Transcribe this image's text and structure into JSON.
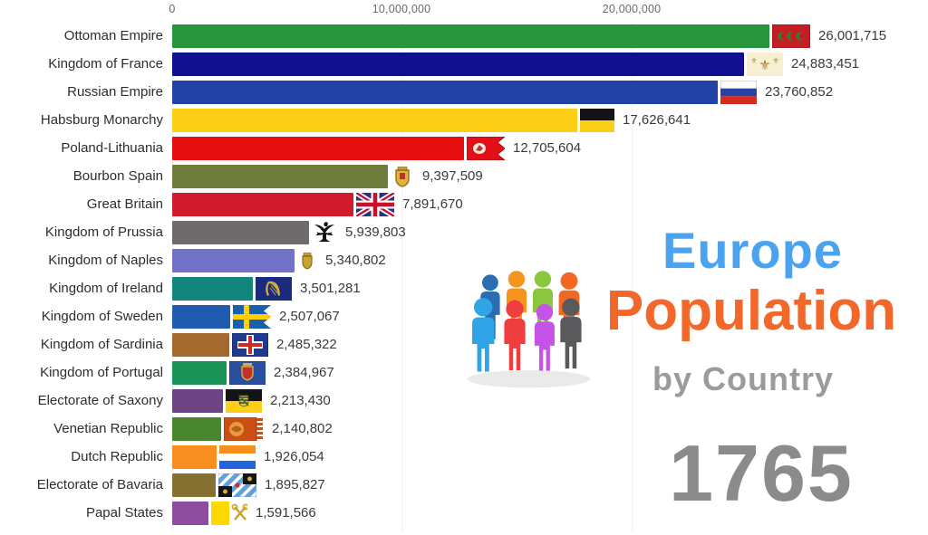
{
  "title": {
    "line1": "Europe",
    "line2": "Population",
    "line3": "by Country",
    "line1_color": "#4aa3ee",
    "line2_color": "#f2682a",
    "line3_color": "#9b9b9b"
  },
  "year": {
    "value": "1765",
    "color": "#8b8b8d"
  },
  "people_icon": {
    "back_row_colors": [
      "#2a6db3",
      "#f7941d",
      "#8cc63e",
      "#f26822"
    ],
    "front_row_colors": [
      "#30a4e6",
      "#ee3e3e",
      "#c553e8",
      "#5a5a5c"
    ]
  },
  "chart_data": {
    "type": "bar",
    "orientation": "horizontal",
    "title": "Europe Population by Country",
    "year": "1765",
    "x_ticks": [
      "0",
      "10,000,000",
      "20,000,000"
    ],
    "x_tick_values": [
      0,
      10000000,
      20000000
    ],
    "xlim": [
      0,
      26500000
    ],
    "grid": "faint vertical at ticks",
    "legend": "none",
    "categories": [
      "Ottoman Empire",
      "Kingdom of France",
      "Russian Empire",
      "Habsburg Monarchy",
      "Poland-Lithuania",
      "Bourbon Spain",
      "Great Britain",
      "Kingdom of Prussia",
      "Kingdom of Naples",
      "Kingdom of Ireland",
      "Kingdom of Sweden",
      "Kingdom of Sardinia",
      "Kingdom of Portugal",
      "Electorate of Saxony",
      "Venetian Republic",
      "Dutch Republic",
      "Electorate of Bavaria",
      "Papal States"
    ],
    "values": [
      26001715,
      24883451,
      23760852,
      17626641,
      12705604,
      9397509,
      7891670,
      5939803,
      5340802,
      3501281,
      2507067,
      2485322,
      2384967,
      2213430,
      2140802,
      1926054,
      1895827,
      1591566
    ],
    "value_labels": [
      "26,001,715",
      "24,883,451",
      "23,760,852",
      "17,626,641",
      "12,705,604",
      "9,397,509",
      "7,891,670",
      "5,939,803",
      "5,340,802",
      "3,501,281",
      "2,507,067",
      "2,485,322",
      "2,384,967",
      "2,213,430",
      "2,140,802",
      "1,926,054",
      "1,895,827",
      "1,591,566"
    ],
    "bar_colors": [
      "#27963c",
      "#0f0f8f",
      "#2242a8",
      "#fdd017",
      "#e80f10",
      "#6f7d3c",
      "#cf1b2b",
      "#6f6b6c",
      "#7272c8",
      "#12857c",
      "#1f5cb0",
      "#a4692c",
      "#199357",
      "#6d4383",
      "#47862f",
      "#f78f1e",
      "#857232",
      "#8d4d9e"
    ],
    "flags": [
      "ottoman-empire",
      "kingdom-of-france",
      "russian-empire",
      "habsburg-monarchy",
      "poland-lithuania",
      "bourbon-spain",
      "great-britain",
      "kingdom-of-prussia",
      "kingdom-of-naples",
      "kingdom-of-ireland",
      "kingdom-of-sweden",
      "kingdom-of-sardinia",
      "kingdom-of-portugal",
      "electorate-of-saxony",
      "venetian-republic",
      "dutch-republic",
      "electorate-of-bavaria",
      "papal-states"
    ]
  }
}
